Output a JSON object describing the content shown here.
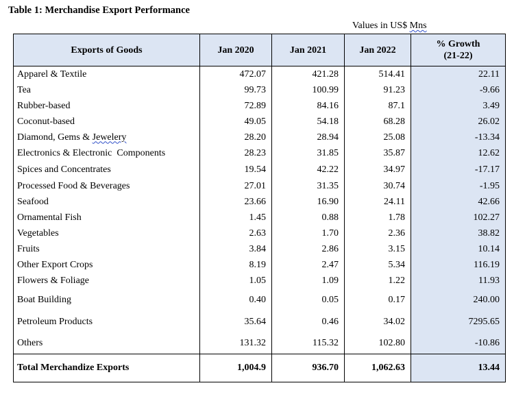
{
  "title": "Table 1: Merchandise Export Performance",
  "units_prefix": "Values in US$ ",
  "units_suffix": "Mns",
  "headers": {
    "goods": "Exports of Goods",
    "y2020": "Jan 2020",
    "y2021": "Jan 2021",
    "y2022": "Jan 2022",
    "growth_line1": "% Growth",
    "growth_line2": "(21-22)"
  },
  "rows": [
    {
      "name": "Apparel & Textile",
      "y2020": "472.07",
      "y2021": "421.28",
      "y2022": "514.41",
      "growth": "22.11"
    },
    {
      "name": "Tea",
      "y2020": "99.73",
      "y2021": "100.99",
      "y2022": "91.23",
      "growth": "-9.66"
    },
    {
      "name": "Rubber-based",
      "y2020": "72.89",
      "y2021": "84.16",
      "y2022": "87.1",
      "growth": "3.49"
    },
    {
      "name": "Coconut-based",
      "y2020": "49.05",
      "y2021": "54.18",
      "y2022": "68.28",
      "growth": "26.02"
    },
    {
      "name_prefix": "Diamond, Gems & ",
      "name_suffix": "Jewelery",
      "y2020": "28.20",
      "y2021": "28.94",
      "y2022": "25.08",
      "growth": "-13.34"
    },
    {
      "name": "Electronics & Electronic  Components",
      "y2020": "28.23",
      "y2021": "31.85",
      "y2022": "35.87",
      "growth": "12.62"
    },
    {
      "name": "Spices and Concentrates",
      "y2020": "19.54",
      "y2021": "42.22",
      "y2022": "34.97",
      "growth": "-17.17"
    },
    {
      "name": "Processed Food & Beverages",
      "y2020": "27.01",
      "y2021": "31.35",
      "y2022": "30.74",
      "growth": "-1.95"
    },
    {
      "name": "Seafood",
      "y2020": "23.66",
      "y2021": "16.90",
      "y2022": "24.11",
      "growth": "42.66"
    },
    {
      "name": "Ornamental Fish",
      "y2020": "1.45",
      "y2021": "0.88",
      "y2022": "1.78",
      "growth": "102.27"
    },
    {
      "name": "Vegetables",
      "y2020": "2.63",
      "y2021": "1.70",
      "y2022": "2.36",
      "growth": "38.82"
    },
    {
      "name": "Fruits",
      "y2020": "3.84",
      "y2021": "2.86",
      "y2022": "3.15",
      "growth": "10.14"
    },
    {
      "name": "Other Export Crops",
      "y2020": "8.19",
      "y2021": "2.47",
      "y2022": "5.34",
      "growth": "116.19"
    },
    {
      "name": "Flowers & Foliage",
      "y2020": "1.05",
      "y2021": "1.09",
      "y2022": "1.22",
      "growth": "11.93"
    },
    {
      "name": "Boat Building",
      "y2020": "0.40",
      "y2021": "0.05",
      "y2022": "0.17",
      "growth": "240.00"
    },
    {
      "name": "Petroleum Products",
      "y2020": "35.64",
      "y2021": "0.46",
      "y2022": "34.02",
      "growth": "7295.65"
    },
    {
      "name": "Others",
      "y2020": "131.32",
      "y2021": "115.32",
      "y2022": "102.80",
      "growth": "-10.86"
    }
  ],
  "total": {
    "name": "Total Merchandize Exports",
    "y2020": "1,004.9",
    "y2021": "936.70",
    "y2022": "1,062.63",
    "growth": "13.44"
  },
  "colors": {
    "header_fill": "#dce5f3",
    "growth_fill": "#dce5f3",
    "spellcheck_underline": "#3050c8"
  }
}
